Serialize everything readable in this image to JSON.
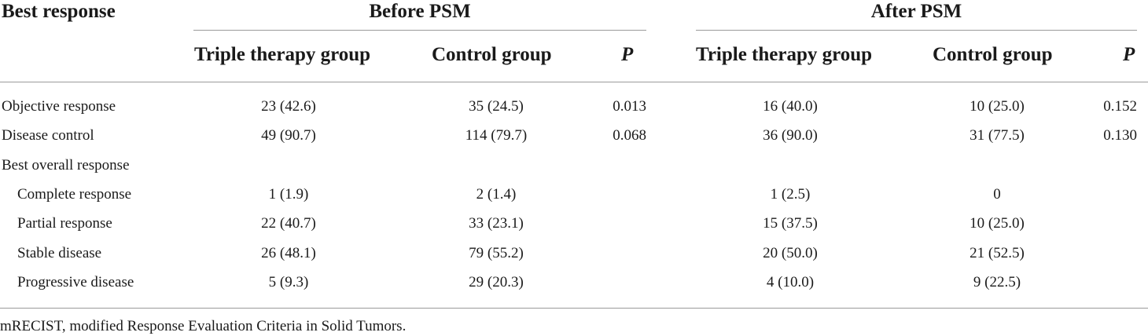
{
  "table": {
    "header": {
      "row_label": "Best response",
      "before_group": "Before PSM",
      "after_group": "After PSM",
      "columns": [
        "Triple therapy group",
        "Control group",
        "P",
        "Triple therapy group",
        "Control group",
        "P"
      ]
    },
    "rows": [
      {
        "label": "Objective response",
        "indent": false,
        "cells": [
          "23 (42.6)",
          "35 (24.5)",
          "0.013",
          "16 (40.0)",
          "10 (25.0)",
          "0.152"
        ]
      },
      {
        "label": "Disease control",
        "indent": false,
        "cells": [
          "49 (90.7)",
          "114 (79.7)",
          "0.068",
          "36 (90.0)",
          "31 (77.5)",
          "0.130"
        ]
      },
      {
        "label": "Best overall response",
        "indent": false,
        "cells": [
          "",
          "",
          "",
          "",
          "",
          ""
        ]
      },
      {
        "label": "Complete response",
        "indent": true,
        "cells": [
          "1 (1.9)",
          "2 (1.4)",
          "",
          "1 (2.5)",
          "0",
          ""
        ]
      },
      {
        "label": "Partial response",
        "indent": true,
        "cells": [
          "22 (40.7)",
          "33 (23.1)",
          "",
          "15 (37.5)",
          "10 (25.0)",
          ""
        ]
      },
      {
        "label": "Stable disease",
        "indent": true,
        "cells": [
          "26 (48.1)",
          "79 (55.2)",
          "",
          "20 (50.0)",
          "21 (52.5)",
          ""
        ]
      },
      {
        "label": "Progressive disease",
        "indent": true,
        "cells": [
          "5 (9.3)",
          "29 (20.3)",
          "",
          "4 (10.0)",
          "9 (22.5)",
          ""
        ]
      }
    ],
    "footnote": "mRECIST, modified Response Evaluation Criteria in Solid Tumors."
  }
}
